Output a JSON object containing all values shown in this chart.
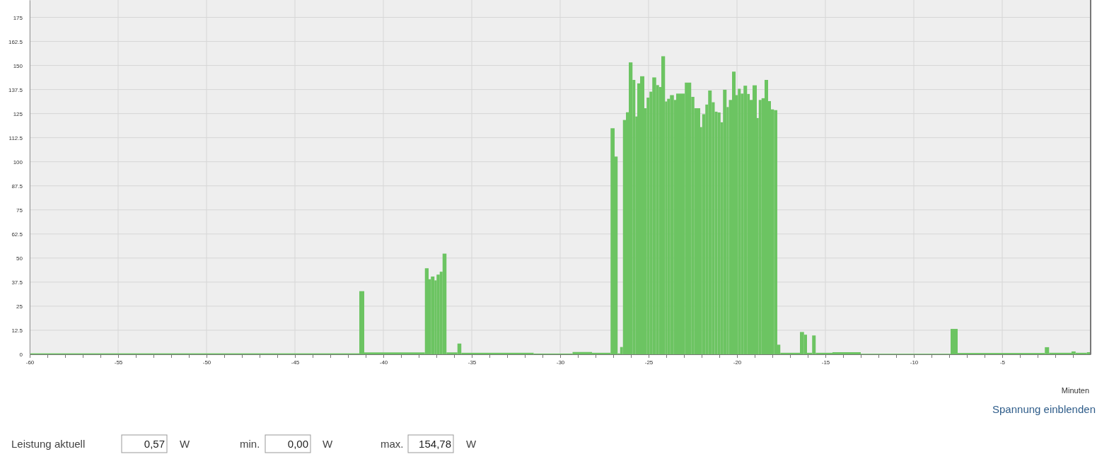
{
  "chart_data": {
    "type": "histogram",
    "xlabel": "Minuten",
    "bins": [
      -60,
      -41.36,
      -41.08,
      -37.65,
      -37.44,
      -37.31,
      -37.11,
      -36.99,
      -36.81,
      -36.65,
      -36.43,
      -35.81,
      -35.59,
      -31.5,
      -29.3,
      -28.2,
      -27.15,
      -26.92,
      -26.75,
      -26.61,
      -26.45,
      -26.28,
      -26.12,
      -25.91,
      -25.75,
      -25.64,
      -25.48,
      -25.24,
      -25.11,
      -24.95,
      -24.79,
      -24.57,
      -24.41,
      -24.28,
      -24.07,
      -23.95,
      -23.79,
      -23.57,
      -23.44,
      -22.95,
      -22.59,
      -22.41,
      -22.08,
      -21.97,
      -21.79,
      -21.63,
      -21.43,
      -21.26,
      -21.1,
      -20.93,
      -20.79,
      -20.59,
      -20.46,
      -20.28,
      -20.08,
      -19.95,
      -19.79,
      -19.63,
      -19.43,
      -19.28,
      -19.12,
      -18.88,
      -18.77,
      -18.61,
      -18.44,
      -18.24,
      -18.08,
      -17.91,
      -17.72,
      -17.55,
      -16.44,
      -16.21,
      -16.04,
      -15.75,
      -15.55,
      -14.6,
      -13,
      -7.92,
      -7.52,
      -2.59,
      -2.35,
      -1.08,
      -0.85,
      -0.21,
      0
    ],
    "values": [
      0.5,
      32.8,
      1,
      44.7,
      39.0,
      40.4,
      38.4,
      41.4,
      42.9,
      52.3,
      1,
      5.6,
      0.8,
      0.4,
      1.2,
      0.8,
      117.4,
      102.7,
      0.5,
      3.8,
      121.7,
      125.7,
      151.6,
      142.5,
      123.5,
      140.7,
      144.4,
      127.8,
      133.3,
      136.4,
      143.8,
      139.8,
      138.8,
      154.8,
      131.3,
      132.7,
      134.6,
      132.1,
      135.4,
      141.1,
      133.7,
      127.8,
      118.0,
      124.7,
      129.7,
      137.0,
      130.9,
      126.0,
      125.6,
      120.5,
      137.4,
      128.4,
      132.1,
      146.8,
      134.6,
      137.9,
      135.4,
      139.5,
      135.2,
      132.1,
      139.7,
      122.7,
      132.1,
      133.0,
      142.5,
      131.5,
      127.2,
      126.8,
      5.0,
      0.8,
      11.6,
      10.2,
      0.8,
      9.8,
      0.8,
      1.1,
      0.3,
      13.2,
      0.7,
      3.7,
      0.8,
      1.5,
      0.8,
      1.1
    ],
    "color": "#6cc462",
    "xlim": [
      -60,
      0
    ],
    "ylim": [
      0,
      184
    ],
    "xticks": [
      {
        "value": -60,
        "label": "-60"
      },
      {
        "value": -59,
        "label": null
      },
      {
        "value": -58,
        "label": null
      },
      {
        "value": -57,
        "label": null
      },
      {
        "value": -56,
        "label": null
      },
      {
        "value": -55,
        "label": "-55"
      },
      {
        "value": -54,
        "label": null
      },
      {
        "value": -53,
        "label": null
      },
      {
        "value": -52,
        "label": null
      },
      {
        "value": -51,
        "label": null
      },
      {
        "value": -50,
        "label": "-50"
      },
      {
        "value": -49,
        "label": null
      },
      {
        "value": -48,
        "label": null
      },
      {
        "value": -47,
        "label": null
      },
      {
        "value": -46,
        "label": null
      },
      {
        "value": -45,
        "label": "-45"
      },
      {
        "value": -44,
        "label": null
      },
      {
        "value": -43,
        "label": null
      },
      {
        "value": -42,
        "label": null
      },
      {
        "value": -41,
        "label": null
      },
      {
        "value": -40,
        "label": "-40"
      },
      {
        "value": -39,
        "label": null
      },
      {
        "value": -38,
        "label": null
      },
      {
        "value": -37,
        "label": null
      },
      {
        "value": -36,
        "label": null
      },
      {
        "value": -35,
        "label": "-35"
      },
      {
        "value": -34,
        "label": null
      },
      {
        "value": -33,
        "label": null
      },
      {
        "value": -32,
        "label": null
      },
      {
        "value": -31,
        "label": null
      },
      {
        "value": -30,
        "label": "-30"
      },
      {
        "value": -29,
        "label": null
      },
      {
        "value": -28,
        "label": null
      },
      {
        "value": -27,
        "label": null
      },
      {
        "value": -26,
        "label": null
      },
      {
        "value": -25,
        "label": "-25"
      },
      {
        "value": -24,
        "label": null
      },
      {
        "value": -23,
        "label": null
      },
      {
        "value": -22,
        "label": null
      },
      {
        "value": -21,
        "label": null
      },
      {
        "value": -20,
        "label": "-20"
      },
      {
        "value": -19,
        "label": null
      },
      {
        "value": -18,
        "label": null
      },
      {
        "value": -17,
        "label": null
      },
      {
        "value": -16,
        "label": null
      },
      {
        "value": -15,
        "label": "-15"
      },
      {
        "value": -14,
        "label": null
      },
      {
        "value": -13,
        "label": null
      },
      {
        "value": -12,
        "label": null
      },
      {
        "value": -11,
        "label": null
      },
      {
        "value": -10,
        "label": "-10"
      },
      {
        "value": -9,
        "label": null
      },
      {
        "value": -8,
        "label": null
      },
      {
        "value": -7,
        "label": null
      },
      {
        "value": -6,
        "label": null
      },
      {
        "value": -5,
        "label": "-5"
      },
      {
        "value": -4,
        "label": null
      },
      {
        "value": -3,
        "label": null
      },
      {
        "value": -2,
        "label": null
      },
      {
        "value": -1,
        "label": null
      }
    ],
    "yticks": [
      0,
      12.5,
      25,
      37.5,
      50,
      62.5,
      75,
      87.5,
      100,
      112.5,
      125,
      137.5,
      150,
      162.5,
      175
    ],
    "grid": true,
    "annotations": [
      "Spannung einblenden",
      "Leistung aktuell",
      "0,57",
      "W",
      "min.",
      "0,00",
      "W",
      "max.",
      "154,78",
      "W"
    ]
  }
}
